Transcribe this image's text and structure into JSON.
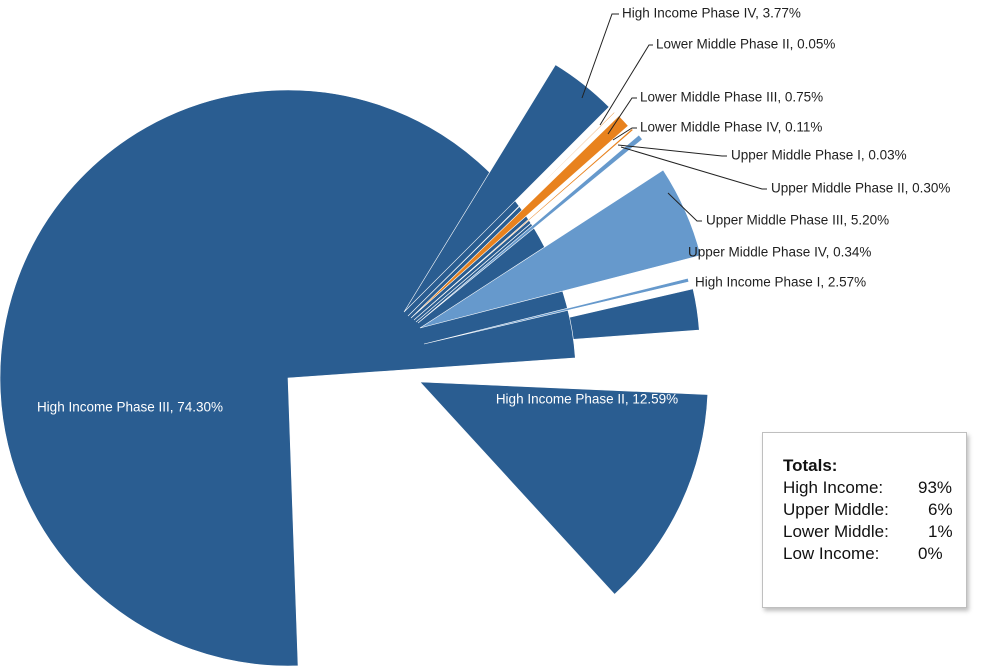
{
  "chart_data": {
    "type": "pie",
    "exploded": true,
    "slices": [
      {
        "label": "High Income Phase I, 2.57%",
        "name": "High Income Phase I",
        "value": 2.57,
        "color": "#2a5d91"
      },
      {
        "label": "High Income Phase II, 12.59%",
        "name": "High Income Phase II",
        "value": 12.59,
        "color": "#2a5d91"
      },
      {
        "label": "High Income Phase III, 74.30%",
        "name": "High Income Phase III",
        "value": 74.3,
        "color": "#2a5d91"
      },
      {
        "label": "High Income Phase IV, 3.77%",
        "name": "High Income Phase IV",
        "value": 3.77,
        "color": "#2a5d91"
      },
      {
        "label": "Lower Middle Phase II, 0.05%",
        "name": "Lower Middle Phase II",
        "value": 0.05,
        "color": "#e8821e"
      },
      {
        "label": "Lower Middle Phase III, 0.75%",
        "name": "Lower Middle Phase III",
        "value": 0.75,
        "color": "#e8821e"
      },
      {
        "label": "Lower Middle Phase IV, 0.11%",
        "name": "Lower Middle Phase IV",
        "value": 0.11,
        "color": "#e8821e"
      },
      {
        "label": "Upper Middle Phase I, 0.03%",
        "name": "Upper Middle Phase I",
        "value": 0.03,
        "color": "#6699cc"
      },
      {
        "label": "Upper Middle Phase II, 0.30%",
        "name": "Upper Middle Phase II",
        "value": 0.3,
        "color": "#6699cc"
      },
      {
        "label": "Upper Middle Phase III, 5.20%",
        "name": "Upper Middle Phase III",
        "value": 5.2,
        "color": "#6699cc"
      },
      {
        "label": "Upper Middle Phase IV, 0.34%",
        "name": "Upper Middle Phase IV",
        "value": 0.34,
        "color": "#6699cc"
      }
    ],
    "legend": "none",
    "title": ""
  },
  "totals": {
    "title": "Totals:",
    "rows": [
      {
        "category": "High Income:",
        "value": "93%"
      },
      {
        "category": "Upper Middle:",
        "value": "6%"
      },
      {
        "category": "Lower Middle:",
        "value": "1%"
      },
      {
        "category": "Low Income:",
        "value": "0%"
      }
    ]
  }
}
